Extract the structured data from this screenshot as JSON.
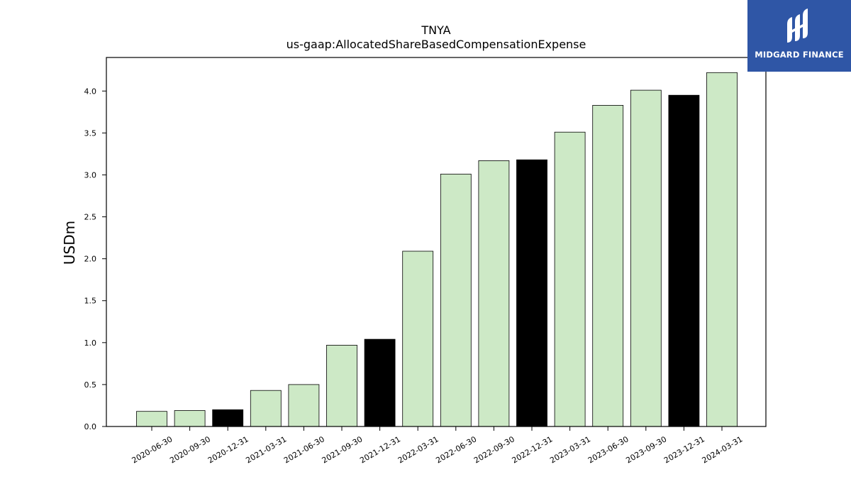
{
  "chart_data": {
    "type": "bar",
    "title": "TNYA",
    "subtitle": "us-gaap:AllocatedShareBasedCompensationExpense",
    "xlabel": "",
    "ylabel": "USDm",
    "ylim": [
      0,
      4.4
    ],
    "yticks": [
      "0.0",
      "0.5",
      "1.0",
      "1.5",
      "2.0",
      "2.5",
      "3.0",
      "3.5",
      "4.0"
    ],
    "grid": false,
    "categories": [
      "2020-06-30",
      "2020-09-30",
      "2020-12-31",
      "2021-03-31",
      "2021-06-30",
      "2021-09-30",
      "2021-12-31",
      "2022-03-31",
      "2022-06-30",
      "2022-09-30",
      "2022-12-31",
      "2023-03-31",
      "2023-06-30",
      "2023-09-30",
      "2023-12-31",
      "2024-03-31"
    ],
    "values": [
      0.18,
      0.19,
      0.2,
      0.43,
      0.5,
      0.97,
      1.04,
      2.09,
      3.01,
      3.17,
      3.18,
      3.51,
      3.83,
      4.01,
      3.95,
      4.22
    ],
    "highlight": [
      false,
      false,
      true,
      false,
      false,
      false,
      true,
      false,
      false,
      false,
      true,
      false,
      false,
      false,
      true,
      false
    ],
    "colors": {
      "bar": "#cde9c6",
      "highlight": "#000000",
      "edge": "#000000"
    }
  },
  "logo": {
    "text": "MIDGARD FINANCE",
    "background": "#2f56a6"
  }
}
